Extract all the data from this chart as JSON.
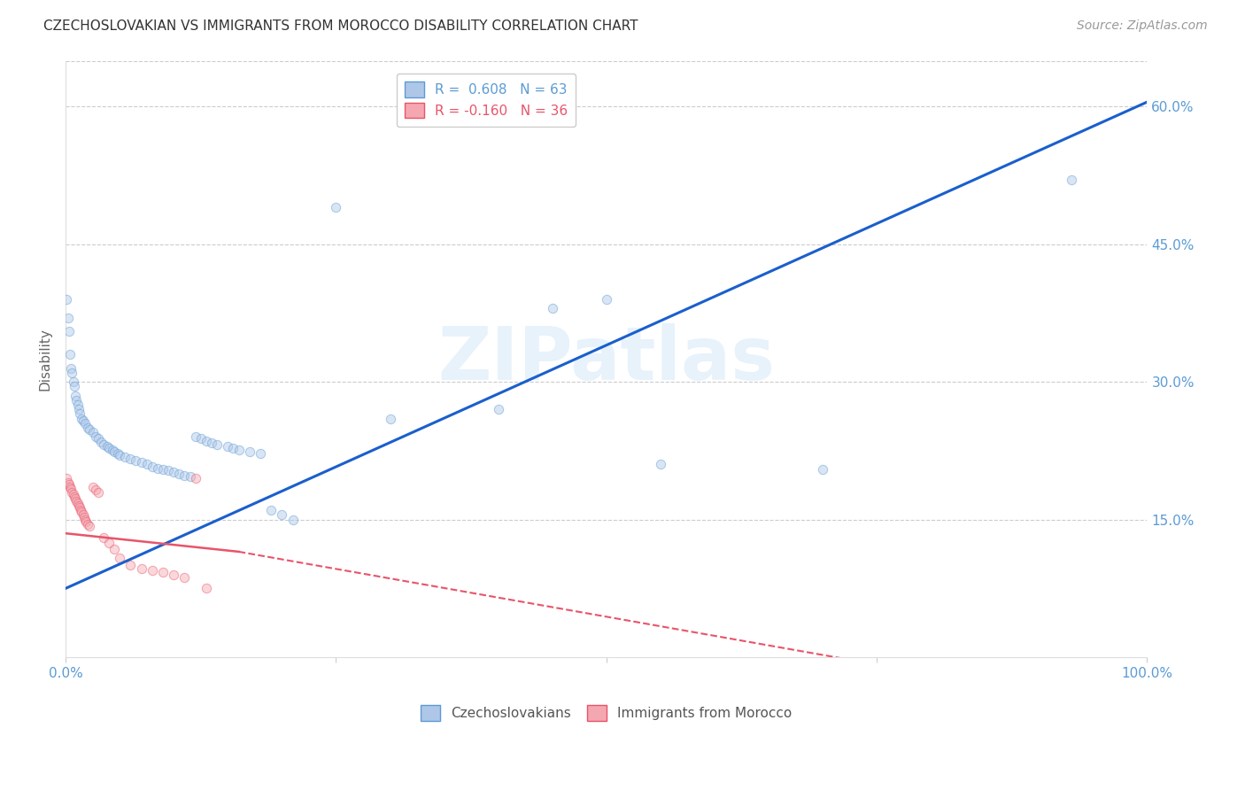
{
  "title": "CZECHOSLOVAKIAN VS IMMIGRANTS FROM MOROCCO DISABILITY CORRELATION CHART",
  "source": "Source: ZipAtlas.com",
  "ylabel": "Disability",
  "watermark": "ZIPatlas",
  "legend_entries": [
    {
      "label": "R =  0.608   N = 63",
      "face": "#aec6e8",
      "edge": "#5b9bd5"
    },
    {
      "label": "R = -0.160   N = 36",
      "face": "#f4a7b0",
      "edge": "#e8546a"
    }
  ],
  "legend_labels_bottom": [
    "Czechoslovakians",
    "Immigrants from Morocco"
  ],
  "blue_scatter": [
    [
      0.001,
      0.39
    ],
    [
      0.002,
      0.37
    ],
    [
      0.003,
      0.355
    ],
    [
      0.004,
      0.33
    ],
    [
      0.005,
      0.315
    ],
    [
      0.006,
      0.31
    ],
    [
      0.007,
      0.3
    ],
    [
      0.008,
      0.295
    ],
    [
      0.009,
      0.285
    ],
    [
      0.01,
      0.28
    ],
    [
      0.011,
      0.275
    ],
    [
      0.012,
      0.27
    ],
    [
      0.013,
      0.265
    ],
    [
      0.015,
      0.26
    ],
    [
      0.016,
      0.258
    ],
    [
      0.018,
      0.255
    ],
    [
      0.02,
      0.25
    ],
    [
      0.022,
      0.248
    ],
    [
      0.025,
      0.245
    ],
    [
      0.028,
      0.24
    ],
    [
      0.03,
      0.238
    ],
    [
      0.033,
      0.235
    ],
    [
      0.035,
      0.232
    ],
    [
      0.038,
      0.23
    ],
    [
      0.04,
      0.228
    ],
    [
      0.043,
      0.226
    ],
    [
      0.045,
      0.224
    ],
    [
      0.048,
      0.222
    ],
    [
      0.05,
      0.22
    ],
    [
      0.055,
      0.218
    ],
    [
      0.06,
      0.216
    ],
    [
      0.065,
      0.214
    ],
    [
      0.07,
      0.212
    ],
    [
      0.075,
      0.21
    ],
    [
      0.08,
      0.208
    ],
    [
      0.085,
      0.206
    ],
    [
      0.09,
      0.205
    ],
    [
      0.095,
      0.204
    ],
    [
      0.1,
      0.202
    ],
    [
      0.105,
      0.2
    ],
    [
      0.11,
      0.198
    ],
    [
      0.115,
      0.197
    ],
    [
      0.12,
      0.24
    ],
    [
      0.125,
      0.238
    ],
    [
      0.13,
      0.236
    ],
    [
      0.135,
      0.234
    ],
    [
      0.14,
      0.232
    ],
    [
      0.15,
      0.23
    ],
    [
      0.155,
      0.228
    ],
    [
      0.16,
      0.226
    ],
    [
      0.17,
      0.224
    ],
    [
      0.18,
      0.222
    ],
    [
      0.19,
      0.16
    ],
    [
      0.2,
      0.155
    ],
    [
      0.21,
      0.15
    ],
    [
      0.25,
      0.49
    ],
    [
      0.3,
      0.26
    ],
    [
      0.4,
      0.27
    ],
    [
      0.45,
      0.38
    ],
    [
      0.5,
      0.39
    ],
    [
      0.55,
      0.21
    ],
    [
      0.7,
      0.205
    ],
    [
      0.93,
      0.52
    ]
  ],
  "pink_scatter": [
    [
      0.001,
      0.195
    ],
    [
      0.002,
      0.19
    ],
    [
      0.003,
      0.188
    ],
    [
      0.004,
      0.185
    ],
    [
      0.005,
      0.183
    ],
    [
      0.006,
      0.18
    ],
    [
      0.007,
      0.178
    ],
    [
      0.008,
      0.175
    ],
    [
      0.009,
      0.173
    ],
    [
      0.01,
      0.17
    ],
    [
      0.011,
      0.168
    ],
    [
      0.012,
      0.165
    ],
    [
      0.013,
      0.163
    ],
    [
      0.014,
      0.16
    ],
    [
      0.015,
      0.158
    ],
    [
      0.016,
      0.155
    ],
    [
      0.017,
      0.153
    ],
    [
      0.018,
      0.15
    ],
    [
      0.019,
      0.148
    ],
    [
      0.02,
      0.145
    ],
    [
      0.022,
      0.143
    ],
    [
      0.025,
      0.185
    ],
    [
      0.028,
      0.182
    ],
    [
      0.03,
      0.18
    ],
    [
      0.035,
      0.13
    ],
    [
      0.04,
      0.125
    ],
    [
      0.045,
      0.118
    ],
    [
      0.05,
      0.108
    ],
    [
      0.06,
      0.1
    ],
    [
      0.07,
      0.097
    ],
    [
      0.08,
      0.095
    ],
    [
      0.09,
      0.093
    ],
    [
      0.1,
      0.09
    ],
    [
      0.11,
      0.087
    ],
    [
      0.12,
      0.195
    ],
    [
      0.13,
      0.075
    ]
  ],
  "blue_line_pts": [
    [
      0.0,
      0.075
    ],
    [
      1.0,
      0.605
    ]
  ],
  "pink_line_solid_pts": [
    [
      0.0,
      0.135
    ],
    [
      0.16,
      0.115
    ]
  ],
  "pink_line_dash_pts": [
    [
      0.16,
      0.115
    ],
    [
      1.0,
      -0.06
    ]
  ],
  "xlim": [
    0.0,
    1.0
  ],
  "ylim": [
    0.0,
    0.65
  ],
  "xticks": [
    0.0,
    0.25,
    0.5,
    0.75,
    1.0
  ],
  "xticklabels": [
    "0.0%",
    "",
    "",
    "",
    "100.0%"
  ],
  "yticks_right": [
    0.15,
    0.3,
    0.45,
    0.6
  ],
  "yticklabels_right": [
    "15.0%",
    "30.0%",
    "45.0%",
    "60.0%"
  ],
  "grid_color": "#cccccc",
  "background_color": "#ffffff",
  "scatter_size": 55,
  "scatter_alpha": 0.45,
  "title_color": "#333333",
  "tick_color": "#5b9bd5",
  "ylabel_color": "#666666"
}
